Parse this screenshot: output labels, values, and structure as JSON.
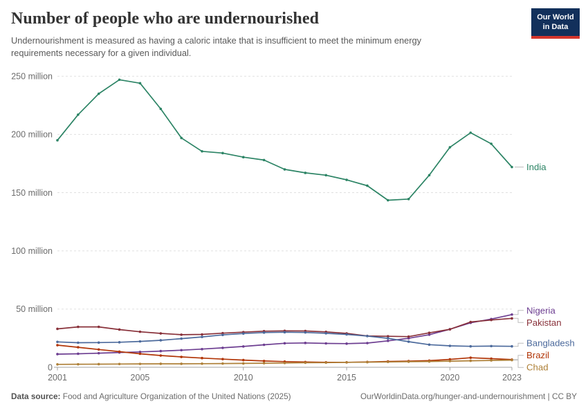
{
  "header": {
    "title": "Number of people who are undernourished",
    "subtitle": "Undernourishment is measured as having a caloric intake that is insufficient to meet the minimum energy requirements necessary for a given individual."
  },
  "logo": {
    "line1": "Our World",
    "line2": "in Data",
    "bg_color": "#12305b",
    "stripe_color": "#d4352c"
  },
  "footer": {
    "datasource_label": "Data source:",
    "datasource_text": " Food and Agriculture Organization of the United Nations (2025)",
    "attribution": "OurWorldinData.org/hunger-and-undernourishment | CC BY"
  },
  "chart_data": {
    "type": "line",
    "title": "Number of people who are undernourished",
    "unit": "million",
    "grid": true,
    "legend_position": "right-end-labels",
    "ylim": [
      0,
      250
    ],
    "y_ticks": [
      {
        "value": 0,
        "label": "0"
      },
      {
        "value": 50,
        "label": "50 million"
      },
      {
        "value": 100,
        "label": "100 million"
      },
      {
        "value": 150,
        "label": "150 million"
      },
      {
        "value": 200,
        "label": "200 million"
      },
      {
        "value": 250,
        "label": "250 million"
      }
    ],
    "x": [
      2001,
      2002,
      2003,
      2004,
      2005,
      2006,
      2007,
      2008,
      2009,
      2010,
      2011,
      2012,
      2013,
      2014,
      2015,
      2016,
      2017,
      2018,
      2019,
      2020,
      2021,
      2022,
      2023
    ],
    "x_ticks": [
      2001,
      2005,
      2010,
      2015,
      2020,
      2023
    ],
    "series": [
      {
        "name": "India",
        "color": "#2C8465",
        "values": [
          195,
          217,
          235,
          247,
          244,
          222,
          197,
          185.5,
          184,
          180.5,
          178,
          170,
          167,
          165,
          161,
          156,
          143.5,
          144.5,
          165,
          189,
          201.5,
          192,
          172
        ]
      },
      {
        "name": "Nigeria",
        "color": "#6D3E91",
        "values": [
          11.3,
          11.6,
          12.1,
          12.7,
          13.2,
          13.9,
          14.7,
          15.6,
          16.7,
          17.9,
          19.3,
          20.6,
          20.9,
          20.5,
          20.3,
          20.8,
          22.7,
          24.9,
          28,
          32.7,
          38.2,
          41.4,
          45.3
        ]
      },
      {
        "name": "Pakistan",
        "color": "#883039",
        "values": [
          33,
          34.7,
          34.7,
          32.4,
          30.5,
          29.1,
          28,
          28.2,
          29.3,
          30.2,
          31,
          31.3,
          31.2,
          30.4,
          29.1,
          26.9,
          26.6,
          26.3,
          29.6,
          32.6,
          38.9,
          40.6,
          42
        ]
      },
      {
        "name": "Bangladesh",
        "color": "#4C6A9C",
        "values": [
          21.8,
          21.1,
          21.2,
          21.5,
          22.2,
          23.2,
          24.6,
          26.1,
          27.8,
          29,
          29.8,
          30.1,
          29.9,
          29.2,
          28.2,
          26.8,
          24.9,
          22,
          19.4,
          18.4,
          18,
          18.2,
          18
        ]
      },
      {
        "name": "Brazil",
        "color": "#B13507",
        "values": [
          19,
          17.2,
          15.3,
          13.4,
          11.6,
          10.1,
          8.9,
          7.9,
          7,
          6.2,
          5.4,
          4.9,
          4.5,
          4.3,
          4.3,
          4.6,
          5,
          5.3,
          5.7,
          6.8,
          8.2,
          7.4,
          6.6
        ]
      },
      {
        "name": "Chad",
        "color": "#AE8038",
        "values": [
          2.5,
          2.6,
          2.7,
          2.8,
          2.9,
          3,
          3,
          3.1,
          3.2,
          3.3,
          3.5,
          3.7,
          3.9,
          4,
          4.2,
          4.4,
          4.6,
          4.8,
          5,
          5.3,
          5.6,
          5.9,
          6.2
        ]
      }
    ]
  }
}
